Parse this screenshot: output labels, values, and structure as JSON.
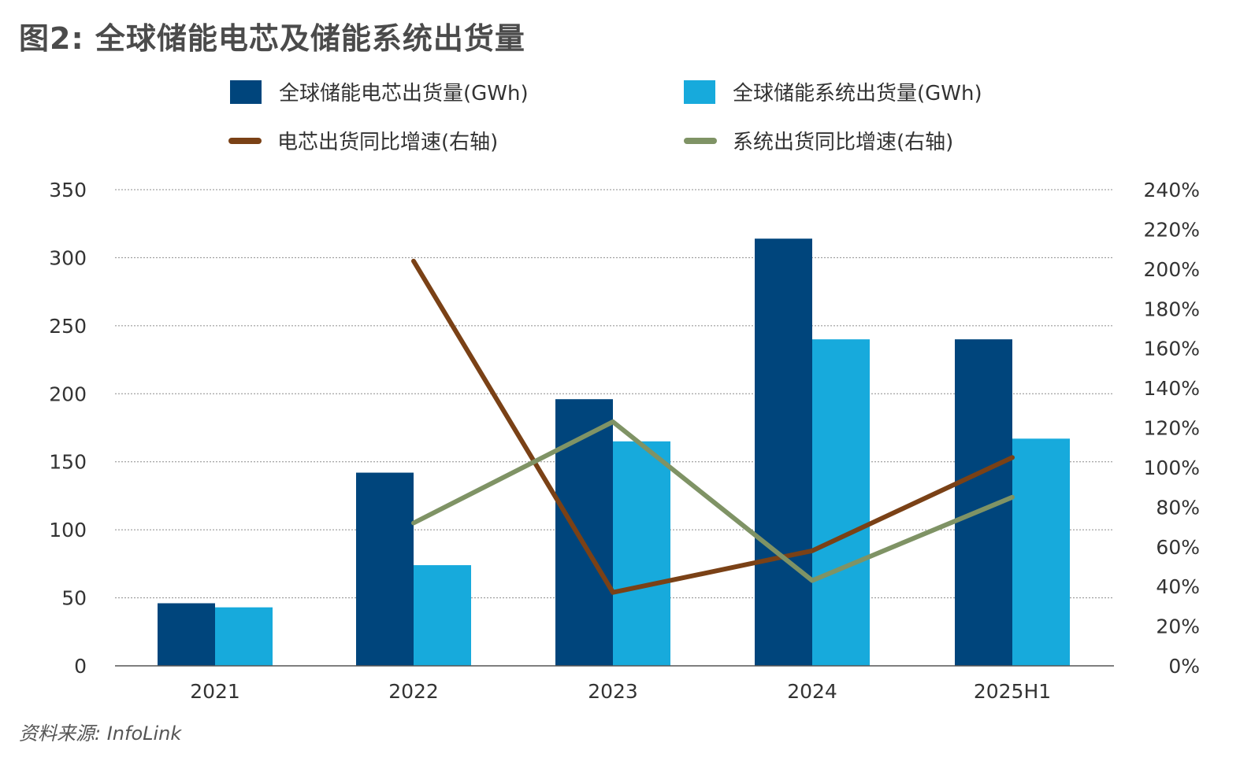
{
  "title": "图2: 全球储能电芯及储能系统出货量",
  "source": "资料来源: InfoLink",
  "colors": {
    "cell_bar": "#00457c",
    "system_bar": "#17aadc",
    "cell_line": "#7a4116",
    "system_line": "#7f9365",
    "grid": "#8c8c8c",
    "axis": "#555555"
  },
  "chart_data": {
    "type": "bar",
    "categories": [
      "2021",
      "2022",
      "2023",
      "2024",
      "2025H1"
    ],
    "series": [
      {
        "name": "全球储能电芯出货量(GWh)",
        "type": "bar",
        "axis": "left",
        "values": [
          46,
          142,
          196,
          314,
          240
        ]
      },
      {
        "name": "全球储能系统出货量(GWh)",
        "type": "bar",
        "axis": "left",
        "values": [
          43,
          74,
          165,
          240,
          167
        ]
      },
      {
        "name": "电芯出货同比增速(右轴)",
        "type": "line",
        "axis": "right",
        "values": [
          null,
          2.04,
          0.37,
          0.58,
          1.05
        ]
      },
      {
        "name": "系统出货同比增速(右轴)",
        "type": "line",
        "axis": "right",
        "values": [
          null,
          0.72,
          1.23,
          0.43,
          0.85
        ]
      }
    ],
    "y_left": {
      "lim": [
        0,
        350
      ],
      "ticks": [
        0,
        50,
        100,
        150,
        200,
        250,
        300,
        350
      ],
      "tick_labels": [
        "0",
        "50",
        "100",
        "150",
        "200",
        "250",
        "300",
        "350"
      ]
    },
    "y_right": {
      "lim": [
        0,
        2.4
      ],
      "ticks": [
        0,
        0.2,
        0.4,
        0.6,
        0.8,
        1.0,
        1.2,
        1.4,
        1.6,
        1.8,
        2.0,
        2.2,
        2.4
      ],
      "tick_labels": [
        "0%",
        "20%",
        "40%",
        "60%",
        "80%",
        "100%",
        "120%",
        "140%",
        "160%",
        "180%",
        "200%",
        "220%",
        "240%"
      ]
    },
    "grid": "horizontal dotted",
    "legend_position": "top"
  }
}
